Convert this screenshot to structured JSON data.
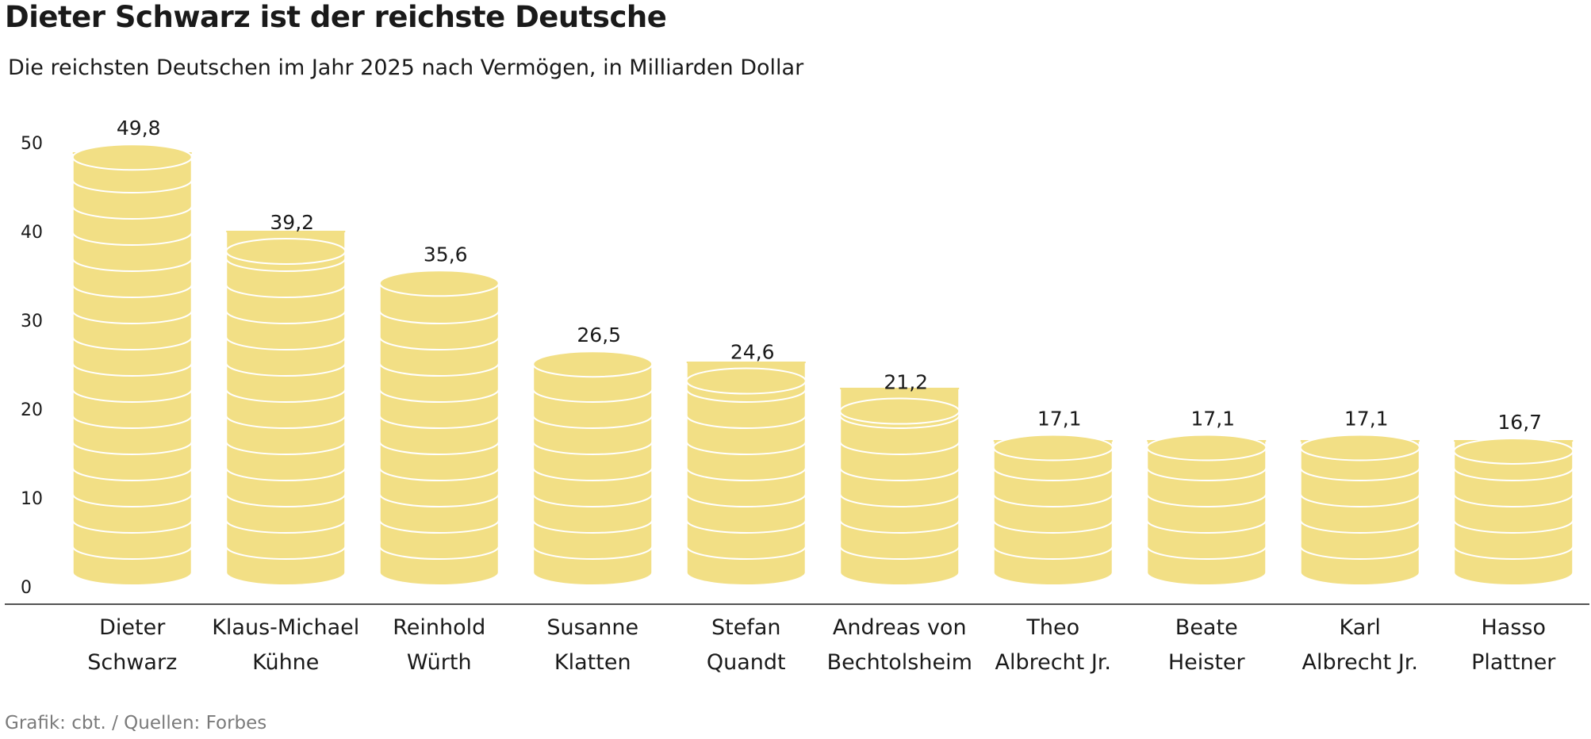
{
  "chart_data": {
    "type": "bar",
    "title": "Dieter Schwarz ist der reichste Deutsche",
    "subtitle": "Die reichsten Deutschen im Jahr 2025 nach Vermögen, in Milliarden Dollar",
    "source": "Grafik: cbt. / Quellen: Forbes",
    "categories": [
      [
        "Dieter",
        "Schwarz"
      ],
      [
        "Klaus-Michael",
        "Kühne"
      ],
      [
        "Reinhold",
        "Würth"
      ],
      [
        "Susanne",
        "Klatten"
      ],
      [
        "Stefan",
        "Quandt"
      ],
      [
        "Andreas von",
        "Bechtolsheim"
      ],
      [
        "Theo",
        "Albrecht Jr."
      ],
      [
        "Beate",
        "Heister"
      ],
      [
        "Karl",
        "Albrecht Jr."
      ],
      [
        "Hasso",
        "Plattner"
      ]
    ],
    "values": [
      49.8,
      39.2,
      35.6,
      26.5,
      24.6,
      21.2,
      17.1,
      17.1,
      17.1,
      16.7
    ],
    "value_labels": [
      "49,8",
      "39,2",
      "35,6",
      "26,5",
      "24,6",
      "21,2",
      "17,1",
      "17,1",
      "17,1",
      "16,7"
    ],
    "yticks": [
      0,
      10,
      20,
      30,
      40,
      50
    ],
    "ylim": [
      0,
      50
    ],
    "xlabel": "",
    "ylabel": "",
    "grid": false,
    "legend": "none",
    "bar_style": "coin-stacks",
    "colors": {
      "coin_fill": "#f2df85",
      "coin_edge": "#ffffff",
      "axis": "#1a1a1a",
      "source_text": "#7a7a7a"
    }
  }
}
